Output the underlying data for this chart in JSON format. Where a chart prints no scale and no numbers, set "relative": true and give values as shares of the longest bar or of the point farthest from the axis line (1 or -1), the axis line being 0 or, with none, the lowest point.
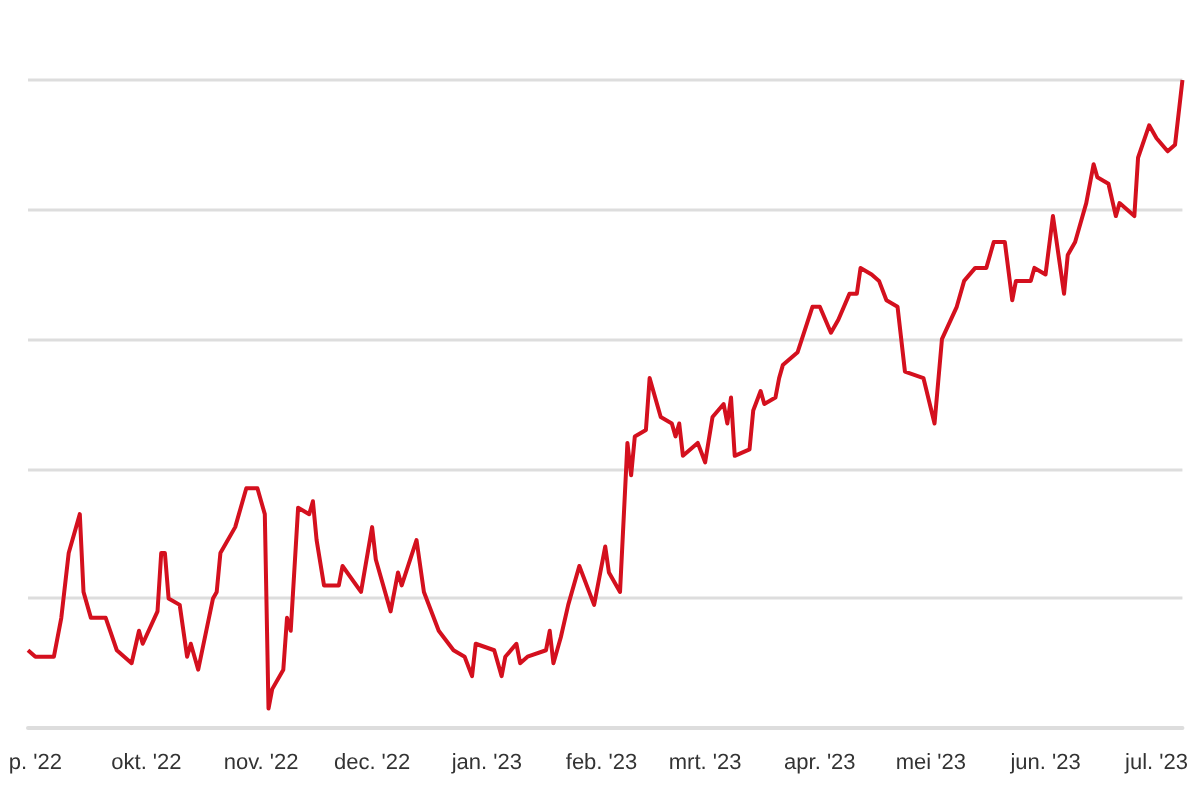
{
  "chart_data": {
    "type": "line",
    "relative": true,
    "grid": "y",
    "marker": "none",
    "line_style": "solid",
    "xlim": [
      "2022-08-30",
      "2023-07-08"
    ],
    "xticks": [
      {
        "value": "2022-09-01",
        "label": "p. '22"
      },
      {
        "value": "2022-10-01",
        "label": "okt. '22"
      },
      {
        "value": "2022-11-01",
        "label": "nov. '22"
      },
      {
        "value": "2022-12-01",
        "label": "dec. '22"
      },
      {
        "value": "2023-01-01",
        "label": "jan. '23"
      },
      {
        "value": "2023-02-01",
        "label": "feb. '23"
      },
      {
        "value": "2023-03-01",
        "label": "mrt. '23"
      },
      {
        "value": "2023-04-01",
        "label": "apr. '23"
      },
      {
        "value": "2023-05-01",
        "label": "mei '23"
      },
      {
        "value": "2023-06-01",
        "label": "jun. '23"
      },
      {
        "value": "2023-07-01",
        "label": "jul. '23"
      }
    ],
    "x": [
      "2022-08-30",
      "2022-09-01",
      "2022-09-06",
      "2022-09-08",
      "2022-09-10",
      "2022-09-13",
      "2022-09-14",
      "2022-09-16",
      "2022-09-20",
      "2022-09-23",
      "2022-09-27",
      "2022-09-29",
      "2022-09-30",
      "2022-10-04",
      "2022-10-05",
      "2022-10-06",
      "2022-10-07",
      "2022-10-10",
      "2022-10-12",
      "2022-10-13",
      "2022-10-15",
      "2022-10-19",
      "2022-10-20",
      "2022-10-21",
      "2022-10-25",
      "2022-10-26",
      "2022-10-28",
      "2022-10-31",
      "2022-11-02",
      "2022-11-03",
      "2022-11-04",
      "2022-11-07",
      "2022-11-08",
      "2022-11-09",
      "2022-11-11",
      "2022-11-14",
      "2022-11-15",
      "2022-11-16",
      "2022-11-18",
      "2022-11-22",
      "2022-11-23",
      "2022-11-28",
      "2022-12-01",
      "2022-12-02",
      "2022-12-06",
      "2022-12-08",
      "2022-12-09",
      "2022-12-13",
      "2022-12-15",
      "2022-12-19",
      "2022-12-23",
      "2022-12-26",
      "2022-12-28",
      "2022-12-29",
      "2023-01-03",
      "2023-01-05",
      "2023-01-06",
      "2023-01-09",
      "2023-01-10",
      "2023-01-12",
      "2023-01-17",
      "2023-01-18",
      "2023-01-19",
      "2023-01-21",
      "2023-01-23",
      "2023-01-26",
      "2023-01-30",
      "2023-02-02",
      "2023-02-03",
      "2023-02-06",
      "2023-02-08",
      "2023-02-09",
      "2023-02-10",
      "2023-02-13",
      "2023-02-14",
      "2023-02-17",
      "2023-02-20",
      "2023-02-21",
      "2023-02-22",
      "2023-02-23",
      "2023-02-27",
      "2023-03-01",
      "2023-03-03",
      "2023-03-06",
      "2023-03-07",
      "2023-03-08",
      "2023-03-09",
      "2023-03-13",
      "2023-03-14",
      "2023-03-16",
      "2023-03-17",
      "2023-03-20",
      "2023-03-21",
      "2023-03-22",
      "2023-03-26",
      "2023-03-30",
      "2023-04-01",
      "2023-04-04",
      "2023-04-06",
      "2023-04-09",
      "2023-04-11",
      "2023-04-12",
      "2023-04-15",
      "2023-04-17",
      "2023-04-19",
      "2023-04-22",
      "2023-04-24",
      "2023-04-29",
      "2023-05-02",
      "2023-05-04",
      "2023-05-08",
      "2023-05-10",
      "2023-05-13",
      "2023-05-15",
      "2023-05-16",
      "2023-05-18",
      "2023-05-21",
      "2023-05-23",
      "2023-05-24",
      "2023-05-28",
      "2023-05-29",
      "2023-06-01",
      "2023-06-03",
      "2023-06-06",
      "2023-06-07",
      "2023-06-09",
      "2023-06-12",
      "2023-06-14",
      "2023-06-15",
      "2023-06-18",
      "2023-06-20",
      "2023-06-21",
      "2023-06-25",
      "2023-06-26",
      "2023-06-29",
      "2023-07-01",
      "2023-07-04",
      "2023-07-06",
      "2023-07-08"
    ],
    "series": [
      {
        "color": "#d4101e",
        "values": [
          0.12,
          0.11,
          0.11,
          0.17,
          0.27,
          0.33,
          0.21,
          0.17,
          0.17,
          0.12,
          0.1,
          0.15,
          0.13,
          0.18,
          0.27,
          0.27,
          0.2,
          0.19,
          0.11,
          0.13,
          0.09,
          0.2,
          0.21,
          0.27,
          0.31,
          0.33,
          0.37,
          0.37,
          0.33,
          0.03,
          0.06,
          0.09,
          0.17,
          0.15,
          0.34,
          0.33,
          0.35,
          0.29,
          0.22,
          0.22,
          0.25,
          0.21,
          0.31,
          0.26,
          0.18,
          0.24,
          0.22,
          0.29,
          0.21,
          0.15,
          0.12,
          0.11,
          0.08,
          0.13,
          0.12,
          0.08,
          0.11,
          0.13,
          0.1,
          0.11,
          0.12,
          0.15,
          0.1,
          0.14,
          0.19,
          0.25,
          0.19,
          0.28,
          0.24,
          0.21,
          0.44,
          0.39,
          0.45,
          0.46,
          0.54,
          0.48,
          0.47,
          0.45,
          0.47,
          0.42,
          0.44,
          0.41,
          0.48,
          0.5,
          0.47,
          0.51,
          0.42,
          0.43,
          0.49,
          0.52,
          0.5,
          0.51,
          0.54,
          0.56,
          0.58,
          0.65,
          0.65,
          0.61,
          0.63,
          0.67,
          0.67,
          0.71,
          0.7,
          0.69,
          0.66,
          0.65,
          0.55,
          0.54,
          0.47,
          0.6,
          0.65,
          0.69,
          0.71,
          0.71,
          0.71,
          0.75,
          0.75,
          0.66,
          0.69,
          0.69,
          0.71,
          0.7,
          0.79,
          0.67,
          0.73,
          0.75,
          0.81,
          0.87,
          0.85,
          0.84,
          0.79,
          0.81,
          0.79,
          0.88,
          0.93,
          0.91,
          0.89,
          0.9,
          1
        ]
      }
    ]
  }
}
